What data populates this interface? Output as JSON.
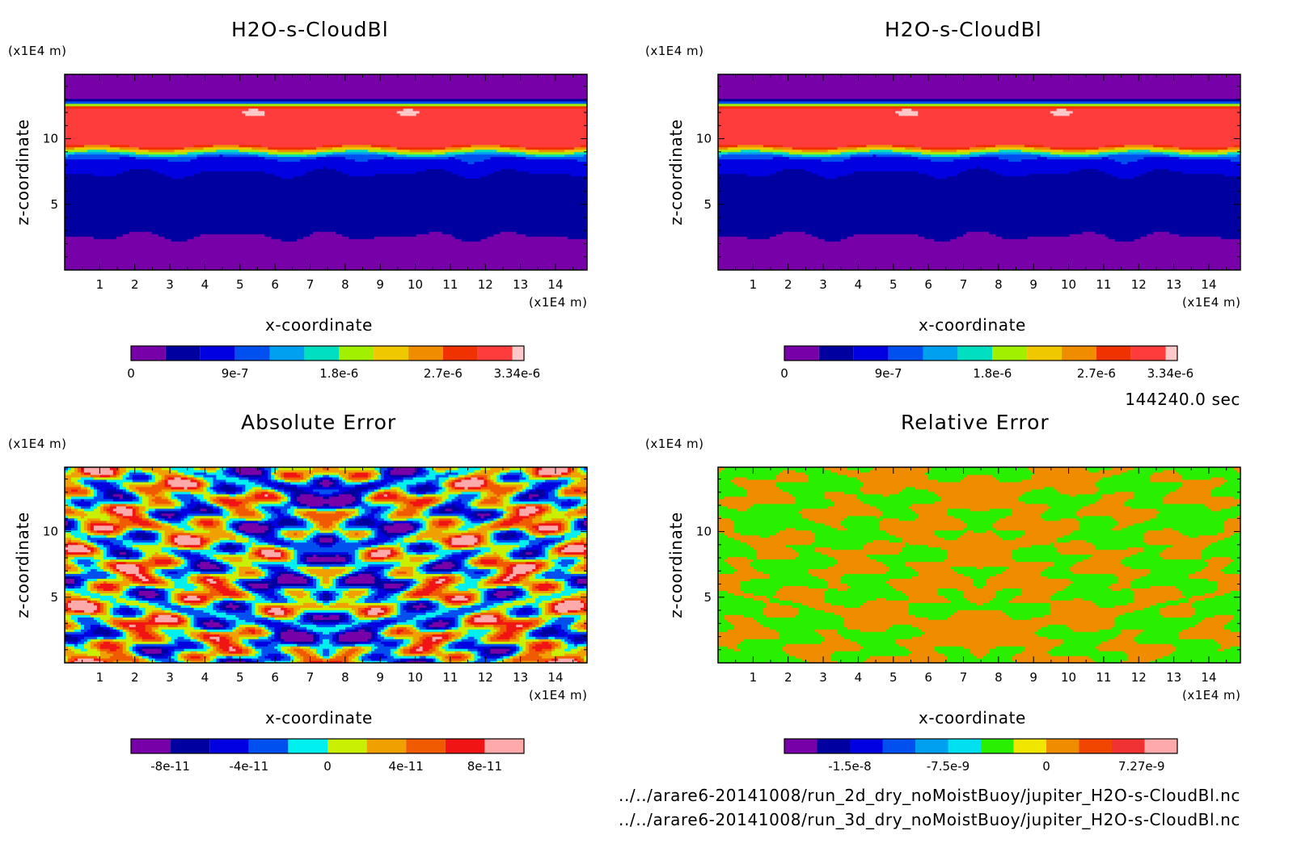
{
  "chart_data": [
    {
      "type": "heatmap",
      "title": "H2O-s-CloudBl",
      "xlabel": "x-coordinate",
      "ylabel": "z-coordinate",
      "x_unit": "(x1E4 m)",
      "y_unit": "(x1E4 m)",
      "xlim": [
        0,
        14.9
      ],
      "ylim": [
        0,
        14.9
      ],
      "x_ticks": [
        "1",
        "2",
        "3",
        "4",
        "5",
        "6",
        "7",
        "8",
        "9",
        "10",
        "11",
        "12",
        "13",
        "14"
      ],
      "y_ticks": [
        "5",
        "10"
      ],
      "colorbar": {
        "ticks": [
          "0",
          "9e-7",
          "1.8e-6",
          "2.7e-6",
          "3.34e-6"
        ],
        "tick_values": [
          0,
          9e-07,
          1.8e-06,
          2.7e-06,
          3.34e-06
        ],
        "min": 0,
        "max": 3.4e-06,
        "levels": [
          0,
          3e-07,
          6e-07,
          9e-07,
          1.2e-06,
          1.5e-06,
          1.8e-06,
          2.1e-06,
          2.4e-06,
          2.7e-06,
          3e-06,
          3.3e-06
        ],
        "colors": [
          "#7800a8",
          "#0000a0",
          "#0000e0",
          "#0050f0",
          "#00a0f0",
          "#00e0c0",
          "#a0f000",
          "#f0c800",
          "#f08c00",
          "#f03200",
          "#ff3c3c",
          "#ffc8c8"
        ]
      }
    },
    {
      "type": "heatmap",
      "title": "H2O-s-CloudBl",
      "xlabel": "x-coordinate",
      "ylabel": "z-coordinate",
      "x_unit": "(x1E4 m)",
      "y_unit": "(x1E4 m)",
      "xlim": [
        0,
        14.9
      ],
      "ylim": [
        0,
        14.9
      ],
      "x_ticks": [
        "1",
        "2",
        "3",
        "4",
        "5",
        "6",
        "7",
        "8",
        "9",
        "10",
        "11",
        "12",
        "13",
        "14"
      ],
      "y_ticks": [
        "5",
        "10"
      ],
      "colorbar": {
        "ticks": [
          "0",
          "9e-7",
          "1.8e-6",
          "2.7e-6",
          "3.34e-6"
        ],
        "tick_values": [
          0,
          9e-07,
          1.8e-06,
          2.7e-06,
          3.34e-06
        ],
        "min": 0,
        "max": 3.4e-06,
        "levels": [
          0,
          3e-07,
          6e-07,
          9e-07,
          1.2e-06,
          1.5e-06,
          1.8e-06,
          2.1e-06,
          2.4e-06,
          2.7e-06,
          3e-06,
          3.3e-06
        ],
        "colors": [
          "#7800a8",
          "#0000a0",
          "#0000e0",
          "#0050f0",
          "#00a0f0",
          "#00e0c0",
          "#a0f000",
          "#f0c800",
          "#f08c00",
          "#f03200",
          "#ff3c3c",
          "#ffc8c8"
        ]
      }
    },
    {
      "type": "heatmap",
      "title": "Absolute Error",
      "xlabel": "x-coordinate",
      "ylabel": "z-coordinate",
      "x_unit": "(x1E4 m)",
      "y_unit": "(x1E4 m)",
      "xlim": [
        0,
        14.9
      ],
      "ylim": [
        0,
        14.9
      ],
      "x_ticks": [
        "1",
        "2",
        "3",
        "4",
        "5",
        "6",
        "7",
        "8",
        "9",
        "10",
        "11",
        "12",
        "13",
        "14"
      ],
      "y_ticks": [
        "5",
        "10"
      ],
      "colorbar": {
        "ticks": [
          "-8e-11",
          "-4e-11",
          "0",
          "4e-11",
          "8e-11"
        ],
        "tick_values": [
          -8e-11,
          -4e-11,
          0,
          4e-11,
          8e-11
        ],
        "min": -1e-10,
        "max": 1e-10,
        "levels": [
          -1e-10,
          -8e-11,
          -6e-11,
          -4e-11,
          -2e-11,
          0,
          2e-11,
          4e-11,
          6e-11,
          8e-11
        ],
        "colors": [
          "#7800a8",
          "#0000a0",
          "#0000e0",
          "#0050f0",
          "#00f0f0",
          "#c8f000",
          "#f0a000",
          "#f05a00",
          "#f01414",
          "#ffaaaa"
        ]
      }
    },
    {
      "type": "heatmap",
      "title": "Relative Error",
      "xlabel": "x-coordinate",
      "ylabel": "z-coordinate",
      "x_unit": "(x1E4 m)",
      "y_unit": "(x1E4 m)",
      "xlim": [
        0,
        14.9
      ],
      "ylim": [
        0,
        14.9
      ],
      "x_ticks": [
        "1",
        "2",
        "3",
        "4",
        "5",
        "6",
        "7",
        "8",
        "9",
        "10",
        "11",
        "12",
        "13",
        "14"
      ],
      "y_ticks": [
        "5",
        "10"
      ],
      "colorbar": {
        "ticks": [
          "-1.5e-8",
          "-7.5e-9",
          "0",
          "7.27e-9"
        ],
        "tick_values": [
          -1.5e-08,
          -7.5e-09,
          0,
          7.27e-09
        ],
        "min": -2e-08,
        "max": 1e-08,
        "levels": [
          -2e-08,
          -1.75e-08,
          -1.5e-08,
          -1.25e-08,
          -1e-08,
          -7.5e-09,
          -5e-09,
          -2.5e-09,
          0,
          2.5e-09,
          5e-09,
          7.5e-09
        ],
        "colors": [
          "#7800a8",
          "#0000a0",
          "#0000e0",
          "#0050f0",
          "#00a0f0",
          "#00e0f0",
          "#28f000",
          "#f0e600",
          "#f08c00",
          "#f04600",
          "#f03232",
          "#ffaaaa"
        ]
      }
    }
  ],
  "time_label": "144240.0 sec",
  "file_paths": [
    "../../arare6-20141008/run_2d_dry_noMoistBuoy/jupiter_H2O-s-CloudBl.nc",
    "../../arare6-20141008/run_3d_dry_noMoistBuoy/jupiter_H2O-s-CloudBl.nc"
  ]
}
